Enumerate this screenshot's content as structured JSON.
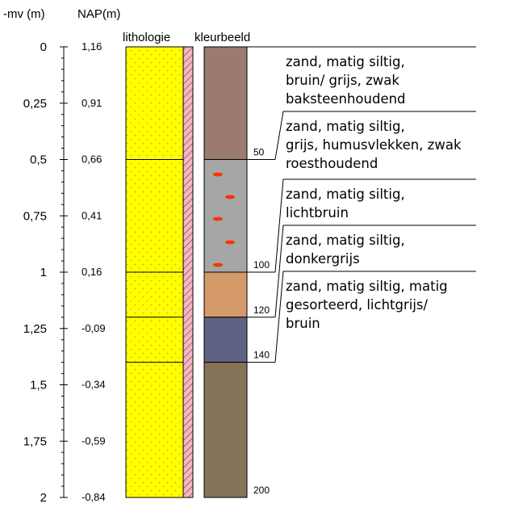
{
  "headers": {
    "depth_col": "-mv (m)",
    "nap_col": "NAP(m)",
    "lithology": "lithologie",
    "color": "kleurbeeld"
  },
  "scale": {
    "max_depth_cm": 200,
    "depth_ticks": [
      "0",
      "0,25",
      "0,5",
      "0,75",
      "1",
      "1,25",
      "1,5",
      "1,75",
      "2"
    ],
    "nap_ticks": [
      "1,16",
      "0,91",
      "0,66",
      "0,41",
      "0,16",
      "-0,09",
      "-0,34",
      "-0,59",
      "-0,84"
    ]
  },
  "layers": [
    {
      "top_cm": 0,
      "bottom_cm": 50,
      "color": "#9a7b6e",
      "mottles": false,
      "depth_label": "50",
      "description": [
        "zand, matig siltig,",
        "bruin/ grijs, zwak",
        "baksteenhoudend"
      ]
    },
    {
      "top_cm": 50,
      "bottom_cm": 100,
      "color": "#a6a6a6",
      "mottles": true,
      "mottle_color": "#ff3300",
      "depth_label": "100",
      "description": [
        "zand, matig siltig,",
        "grijs, humusvlekken, zwak",
        "roesthoudend"
      ]
    },
    {
      "top_cm": 100,
      "bottom_cm": 120,
      "color": "#d49a6a",
      "mottles": false,
      "depth_label": "120",
      "description": [
        "zand, matig siltig,",
        "lichtbruin"
      ]
    },
    {
      "top_cm": 120,
      "bottom_cm": 140,
      "color": "#5f6285",
      "mottles": false,
      "depth_label": "140",
      "description": [
        "zand, matig siltig,",
        "donkergrijs"
      ]
    },
    {
      "top_cm": 140,
      "bottom_cm": 200,
      "color": "#867359",
      "mottles": false,
      "depth_label": "200",
      "description": [
        "zand, matig siltig, matig",
        "gesorteerd, lichtgrijs/",
        "bruin"
      ]
    }
  ],
  "lithology_fill": "#ffff00",
  "lithology_dot": "#c8a000",
  "lithology_strip": "#f2b8c6"
}
